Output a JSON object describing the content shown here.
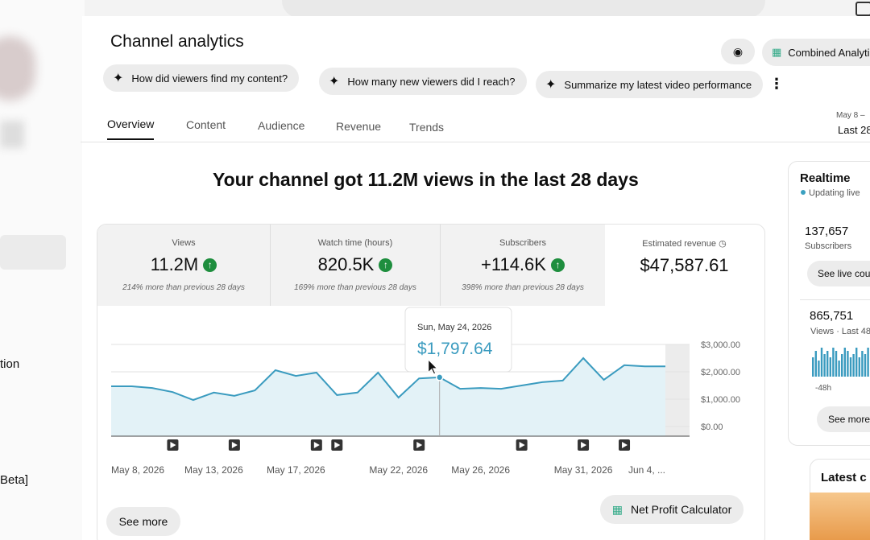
{
  "sidebar": {
    "items": [
      "tion",
      "Beta]"
    ]
  },
  "header": {
    "title": "Channel analytics",
    "combined": "Combined Analyti"
  },
  "prompts": [
    "How did viewers find my content?",
    "How many new viewers did I reach?",
    "Summarize my latest video performance"
  ],
  "tabs": [
    "Overview",
    "Content",
    "Audience",
    "Revenue",
    "Trends"
  ],
  "date_range": {
    "dates": "May 8 –",
    "label": "Last 28"
  },
  "headline": "Your channel got 11.2M views in the last 28 days",
  "metrics": [
    {
      "label": "Views",
      "value": "11.2M",
      "note": "214% more than previous 28 days"
    },
    {
      "label": "Watch time (hours)",
      "value": "820.5K",
      "note": "169% more than previous 28 days"
    },
    {
      "label": "Subscribers",
      "value": "+114.6K",
      "note": "398% more than previous 28 days"
    },
    {
      "label": "Estimated revenue",
      "value": "$47,587.61"
    }
  ],
  "chart": {
    "type": "area",
    "categories": [
      "May 8, 2026",
      null,
      null,
      null,
      null,
      "May 13, 2026",
      null,
      null,
      null,
      "May 17, 2026",
      null,
      null,
      null,
      null,
      "May 22, 2026",
      null,
      null,
      null,
      "May 26, 2026",
      null,
      null,
      null,
      null,
      "May 31, 2026",
      null,
      null,
      null,
      "Jun 4, ..."
    ],
    "values": [
      1470,
      1470,
      1410,
      1260,
      970,
      1240,
      1120,
      1320,
      2060,
      1850,
      1970,
      1150,
      1240,
      1970,
      1060,
      1760,
      1797.64,
      1380,
      1410,
      1380,
      1500,
      1620,
      1680,
      2500,
      1710,
      2240,
      2200,
      2200
    ],
    "ylim": [
      0,
      3000
    ],
    "yticks": [
      {
        "value": 0,
        "label": "$0.00"
      },
      {
        "value": 1000,
        "label": "$1,000.00"
      },
      {
        "value": 2000,
        "label": "$2,000.00"
      },
      {
        "value": 3000,
        "label": "$3,000.00"
      }
    ],
    "tooltip": {
      "title": "Sun, May 24, 2026",
      "value_label": "$1,797.64"
    }
  },
  "buttons": {
    "see_more": "See more",
    "net_profit": "Net Profit Calculator"
  },
  "realtime": {
    "title": "Realtime",
    "status": "Updating live",
    "subscribers": "137,657",
    "subscribers_label": "Subscribers",
    "live_button": "See live cou",
    "views": "865,751",
    "views_label": "Views · Last 48",
    "axis_label": "-48h",
    "see_more": "See more",
    "latest": "Latest c",
    "bars": [
      6,
      8,
      5,
      9,
      7,
      8,
      6,
      9,
      8,
      5,
      7,
      9,
      8,
      6,
      7,
      9,
      6,
      8,
      7,
      9
    ]
  }
}
